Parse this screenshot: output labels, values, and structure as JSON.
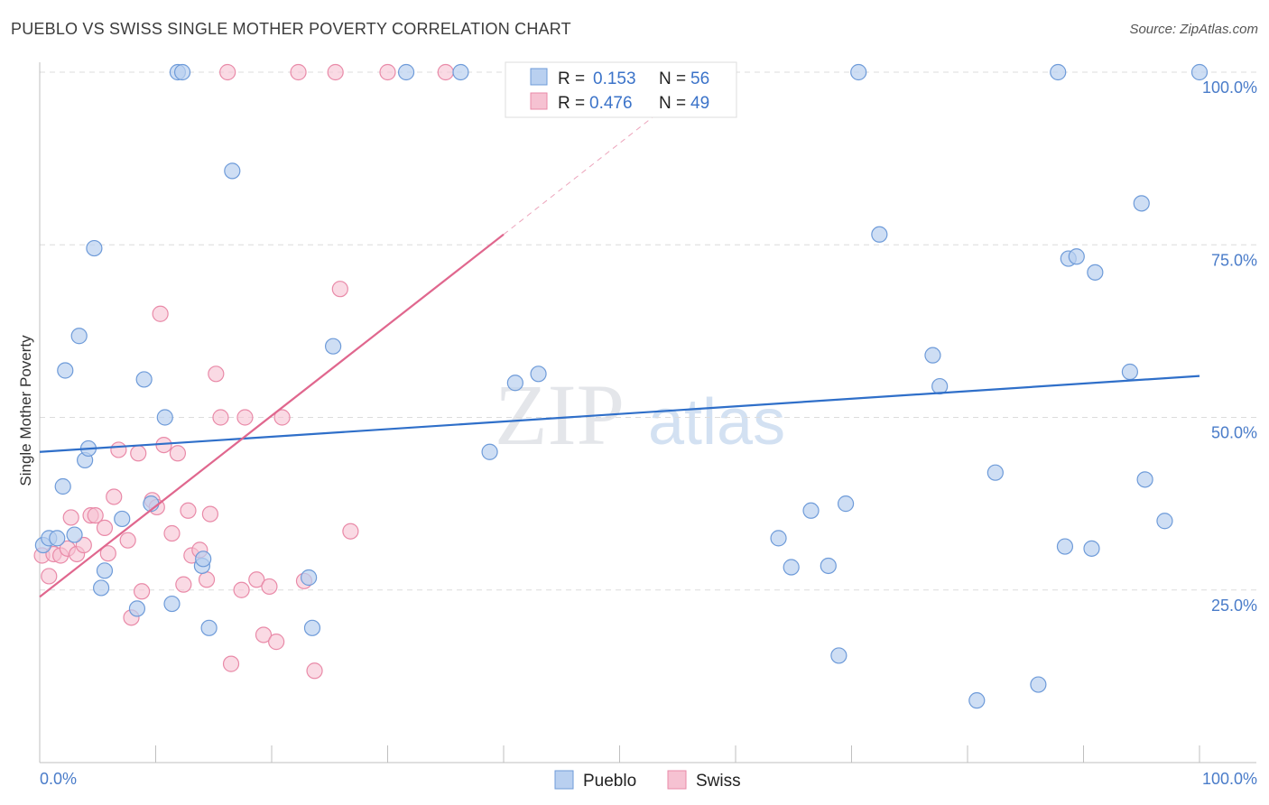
{
  "title": "PUEBLO VS SWISS SINGLE MOTHER POVERTY CORRELATION CHART",
  "source": "Source: ZipAtlas.com",
  "watermark": {
    "zip": "ZIP",
    "atlas": "atlas"
  },
  "legend": {
    "r_label": "R =",
    "n_label": "N =",
    "pueblo": {
      "r": "0.153",
      "n": "56"
    },
    "swiss": {
      "r": "0.476",
      "n": "49"
    }
  },
  "colors": {
    "pueblo_fill": "#b9d0f0",
    "pueblo_stroke": "#6e9bd9",
    "pueblo_line": "#2f6fc9",
    "swiss_fill": "#f6c2d2",
    "swiss_stroke": "#e98aa8",
    "swiss_line": "#e0678e"
  },
  "chart_data": {
    "type": "scatter",
    "title": "PUEBLO VS SWISS SINGLE MOTHER POVERTY CORRELATION CHART",
    "xlabel": "",
    "ylabel": "Single Mother Poverty",
    "xlim": [
      0,
      100
    ],
    "ylim": [
      0,
      100
    ],
    "x_tick_labels": [
      "0.0%",
      "100.0%"
    ],
    "y_ticks": [
      {
        "value": 25,
        "label": "25.0%"
      },
      {
        "value": 50,
        "label": "50.0%"
      },
      {
        "value": 75,
        "label": "75.0%"
      },
      {
        "value": 100,
        "label": "100.0%"
      }
    ],
    "series": [
      {
        "name": "Pueblo",
        "trend": {
          "x0": 0,
          "y0": 45.0,
          "x1": 100,
          "y1": 56.0
        },
        "points": [
          [
            0.3,
            31.5
          ],
          [
            0.8,
            32.5
          ],
          [
            1.5,
            32.5
          ],
          [
            2.0,
            40.0
          ],
          [
            2.2,
            56.8
          ],
          [
            3.0,
            33.0
          ],
          [
            3.4,
            61.8
          ],
          [
            3.9,
            43.8
          ],
          [
            4.2,
            45.5
          ],
          [
            4.7,
            74.5
          ],
          [
            5.3,
            25.3
          ],
          [
            5.6,
            27.8
          ],
          [
            7.1,
            35.3
          ],
          [
            8.4,
            22.3
          ],
          [
            9.0,
            55.5
          ],
          [
            9.6,
            37.5
          ],
          [
            10.8,
            50.0
          ],
          [
            11.4,
            23.0
          ],
          [
            11.9,
            100
          ],
          [
            12.3,
            100
          ],
          [
            14.0,
            28.5
          ],
          [
            14.1,
            29.5
          ],
          [
            14.6,
            19.5
          ],
          [
            16.6,
            85.7
          ],
          [
            23.2,
            26.8
          ],
          [
            23.5,
            19.5
          ],
          [
            25.3,
            60.3
          ],
          [
            31.6,
            100
          ],
          [
            36.3,
            100
          ],
          [
            38.8,
            45.0
          ],
          [
            41.0,
            55.0
          ],
          [
            43.0,
            56.3
          ],
          [
            63.7,
            32.5
          ],
          [
            64.8,
            28.3
          ],
          [
            66.5,
            36.5
          ],
          [
            68.0,
            28.5
          ],
          [
            68.9,
            15.5
          ],
          [
            69.5,
            37.5
          ],
          [
            70.6,
            100
          ],
          [
            72.4,
            76.5
          ],
          [
            77.0,
            59.0
          ],
          [
            77.6,
            54.5
          ],
          [
            80.8,
            9.0
          ],
          [
            82.4,
            42.0
          ],
          [
            86.1,
            11.3
          ],
          [
            87.8,
            100
          ],
          [
            88.4,
            31.3
          ],
          [
            88.7,
            73.0
          ],
          [
            89.4,
            73.3
          ],
          [
            90.7,
            31.0
          ],
          [
            91.0,
            71.0
          ],
          [
            94.0,
            56.6
          ],
          [
            95.0,
            81.0
          ],
          [
            95.3,
            41.0
          ],
          [
            97.0,
            35.0
          ],
          [
            100.0,
            100
          ]
        ]
      },
      {
        "name": "Swiss",
        "trend": {
          "x0": 0,
          "y0": 24.0,
          "x1": 40.0,
          "y1": 76.5,
          "dash_to_x": 54.0,
          "dash_to_y": 95.0
        },
        "points": [
          [
            0.2,
            30.0
          ],
          [
            0.8,
            27.0
          ],
          [
            1.2,
            30.2
          ],
          [
            1.8,
            30.0
          ],
          [
            2.4,
            31.0
          ],
          [
            2.7,
            35.5
          ],
          [
            3.2,
            30.2
          ],
          [
            3.8,
            31.5
          ],
          [
            4.4,
            35.8
          ],
          [
            4.8,
            35.8
          ],
          [
            5.6,
            34.0
          ],
          [
            5.9,
            30.3
          ],
          [
            6.4,
            38.5
          ],
          [
            6.8,
            45.3
          ],
          [
            7.6,
            32.2
          ],
          [
            7.9,
            21.0
          ],
          [
            8.5,
            44.8
          ],
          [
            8.8,
            24.8
          ],
          [
            9.7,
            38.0
          ],
          [
            10.1,
            37.0
          ],
          [
            10.4,
            65.0
          ],
          [
            10.7,
            46.0
          ],
          [
            11.4,
            33.2
          ],
          [
            11.9,
            44.8
          ],
          [
            12.4,
            25.8
          ],
          [
            12.8,
            36.5
          ],
          [
            13.1,
            30.0
          ],
          [
            13.8,
            30.8
          ],
          [
            14.4,
            26.5
          ],
          [
            14.7,
            36.0
          ],
          [
            15.2,
            56.3
          ],
          [
            15.6,
            50.0
          ],
          [
            16.2,
            100
          ],
          [
            16.5,
            14.3
          ],
          [
            17.4,
            25.0
          ],
          [
            17.7,
            50.0
          ],
          [
            18.7,
            26.5
          ],
          [
            19.3,
            18.5
          ],
          [
            19.8,
            25.5
          ],
          [
            20.4,
            17.5
          ],
          [
            20.9,
            50.0
          ],
          [
            22.3,
            100
          ],
          [
            22.8,
            26.3
          ],
          [
            23.7,
            13.3
          ],
          [
            25.5,
            100
          ],
          [
            25.9,
            68.6
          ],
          [
            26.8,
            33.5
          ],
          [
            30.0,
            100
          ],
          [
            35.0,
            100
          ]
        ]
      }
    ]
  }
}
